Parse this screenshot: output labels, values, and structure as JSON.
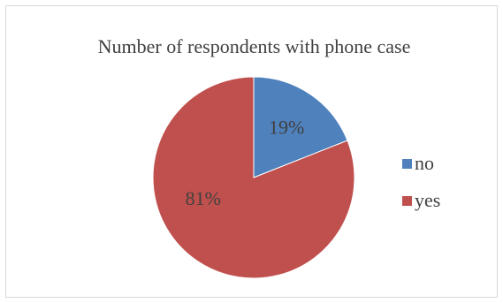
{
  "chart_data": {
    "type": "pie",
    "title": "Number of respondents with phone case",
    "categories": [
      "no",
      "yes"
    ],
    "values": [
      19,
      81
    ],
    "data_labels": [
      "19%",
      "81%"
    ],
    "colors": [
      "#4f81bd",
      "#c0504d"
    ],
    "legend_position": "right"
  }
}
